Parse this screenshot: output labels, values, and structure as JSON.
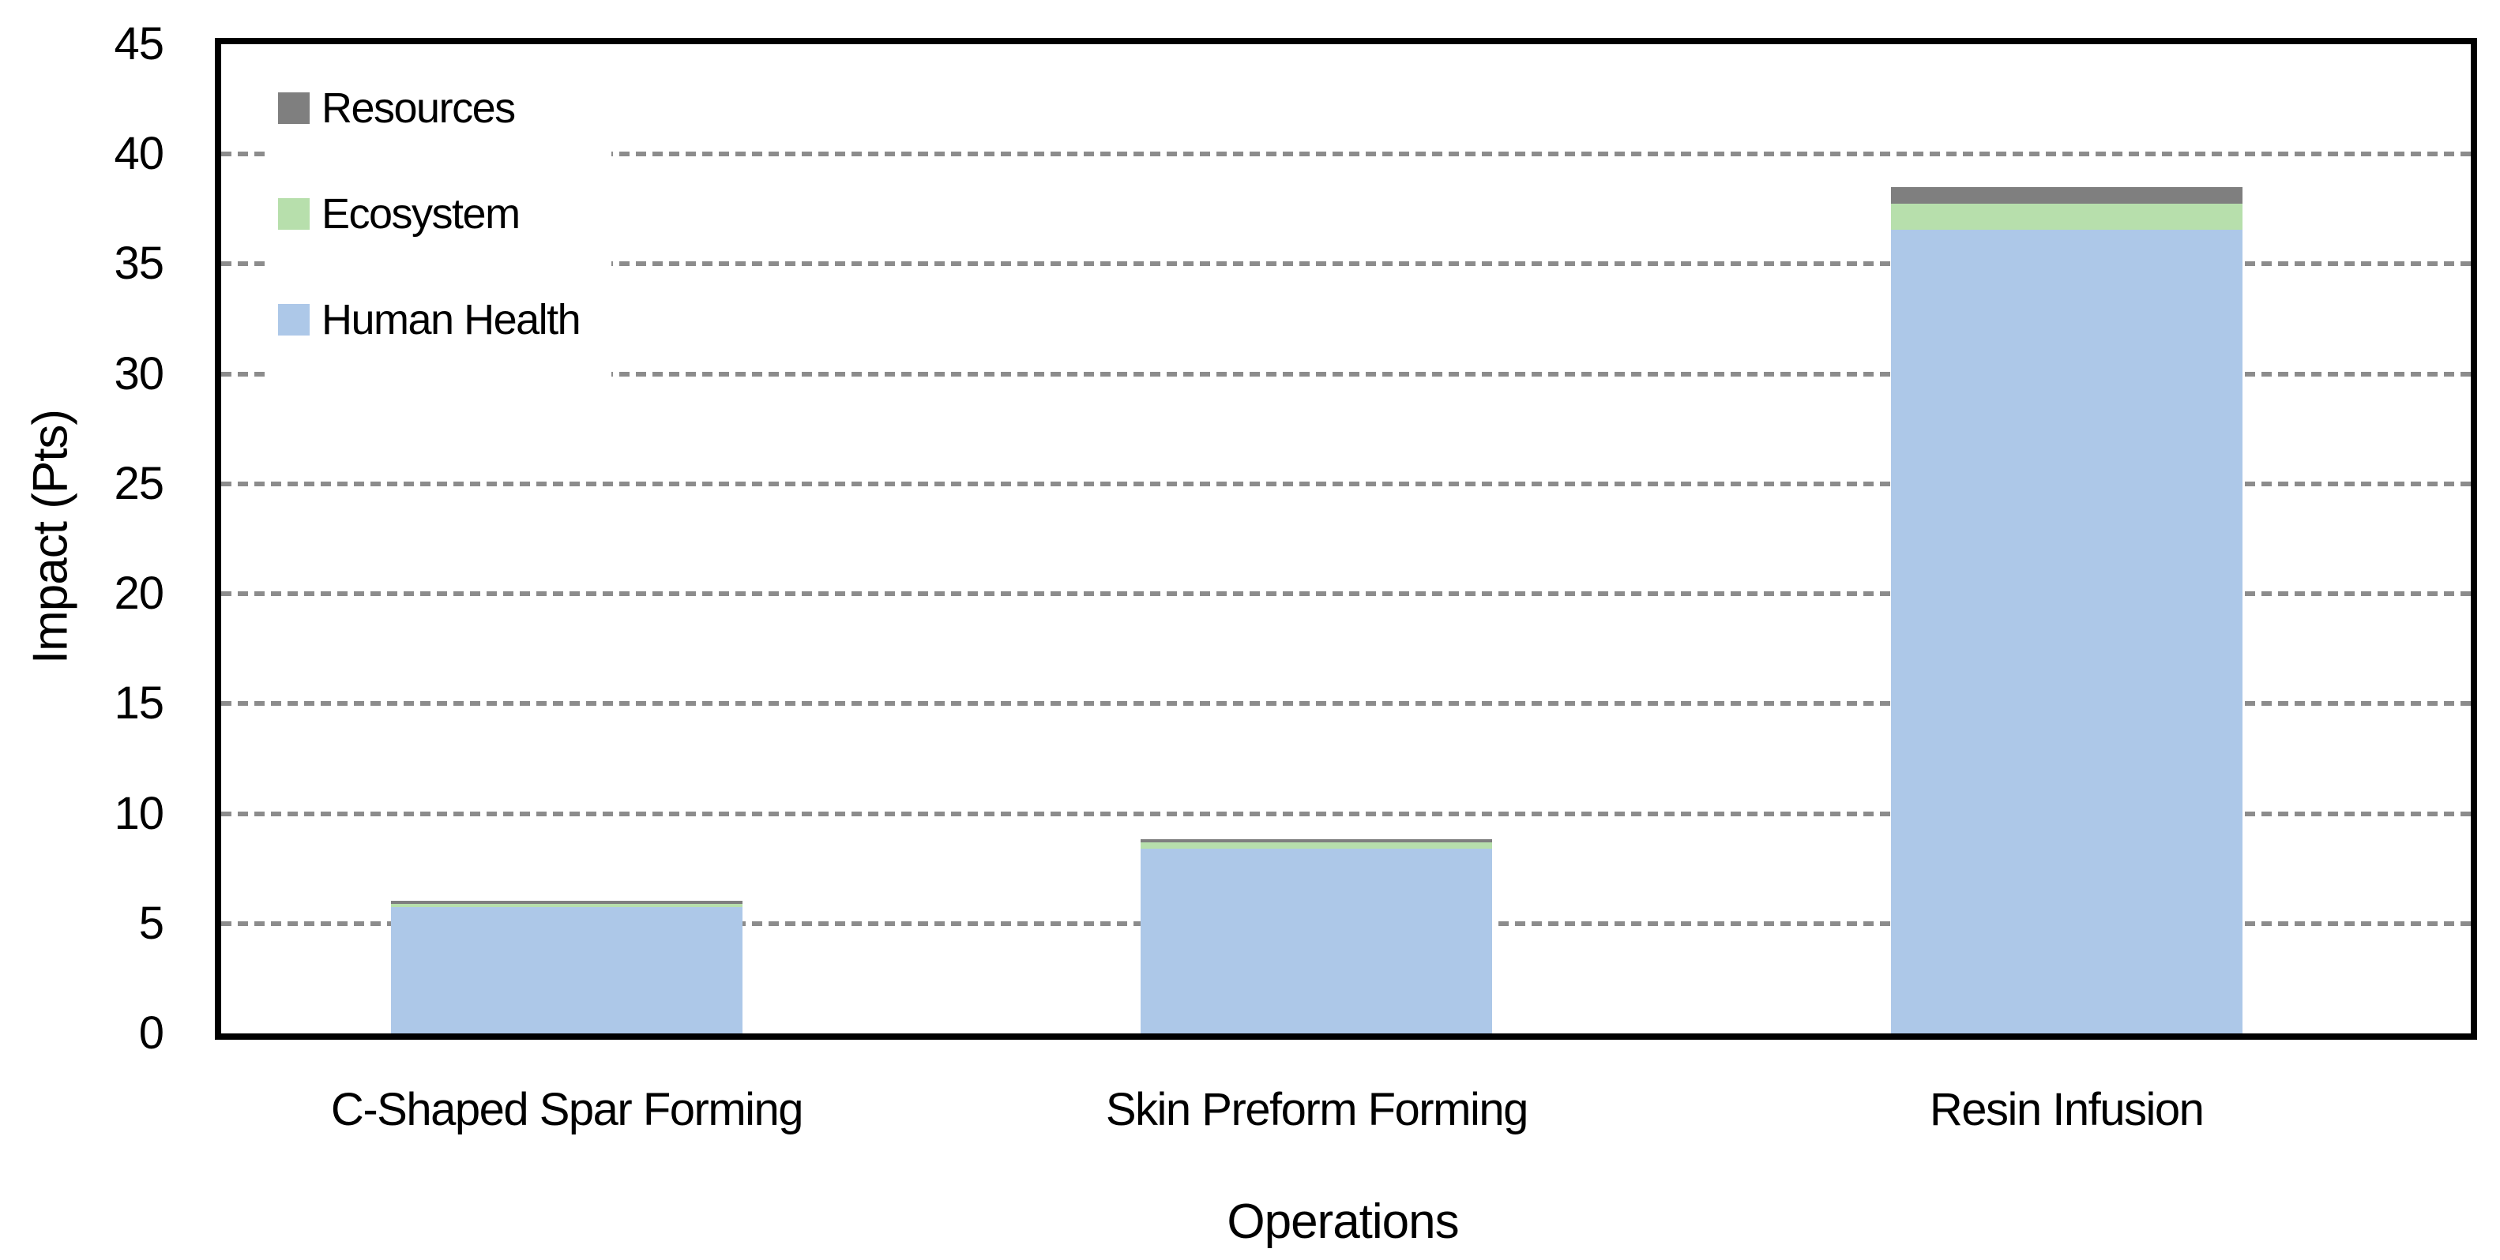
{
  "chart_data": {
    "type": "bar",
    "stacked": true,
    "title": "",
    "xlabel": "Operations",
    "ylabel": "Impact (Pts)",
    "ylim": [
      0,
      45
    ],
    "ytick_step": 5,
    "yticks": [
      0,
      5,
      10,
      15,
      20,
      25,
      30,
      35,
      40,
      45
    ],
    "categories": [
      "C-Shaped Spar Forming",
      "Skin Preform Forming",
      "Resin Infusion"
    ],
    "series": [
      {
        "name": "Human Health",
        "color": "#ADC8E8",
        "values": [
          5.75,
          8.4,
          36.55
        ]
      },
      {
        "name": "Ecosystem",
        "color": "#B7DFAC",
        "values": [
          0.15,
          0.3,
          1.2
        ]
      },
      {
        "name": "Resources",
        "color": "#7F7F7F",
        "values": [
          0.15,
          0.15,
          0.75
        ]
      }
    ],
    "stack_totals": [
      6.05,
      8.85,
      38.5
    ],
    "legend": {
      "position": "top-left",
      "fill": "#ffffff",
      "entries": [
        "Resources",
        "Ecosystem",
        "Human Health"
      ]
    },
    "grid": {
      "axis": "y",
      "style": "dashed",
      "color": "#8C8C8C"
    },
    "axis_color": "#000000",
    "text_color": "#000000",
    "background": "#ffffff"
  }
}
